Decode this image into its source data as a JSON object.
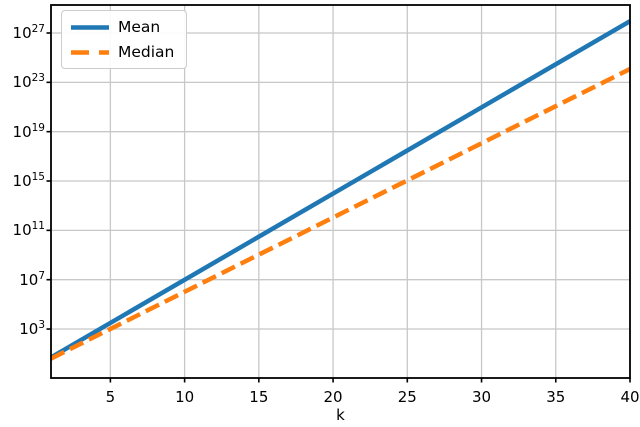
{
  "figure": {
    "background": "#ffffff",
    "axis_color": "#000000",
    "grid_color": "#c8c8c8",
    "y_base": "10"
  },
  "chart_data": {
    "type": "line",
    "title": "",
    "xlabel": "k",
    "ylabel": "",
    "x_scale": "linear",
    "y_scale": "log10",
    "xlim": [
      1,
      40
    ],
    "ylim_log10": [
      -0.97,
      29.27
    ],
    "x_ticks": [
      5,
      10,
      15,
      20,
      25,
      30,
      35,
      40
    ],
    "y_tick_exponents": [
      3,
      7,
      11,
      15,
      19,
      23,
      27
    ],
    "grid": true,
    "legend_position": "upper left",
    "series": [
      {
        "name": "Mean",
        "color": "#1f77b4",
        "line_style": "solid",
        "line_width": 4.5,
        "x": [
          1,
          40
        ],
        "log10_y": [
          0.7,
          27.96
        ]
      },
      {
        "name": "Median",
        "color": "#ff7f0e",
        "line_style": "dashed",
        "line_width": 4.5,
        "dash_pattern": [
          14.8,
          6.4
        ],
        "x": [
          1,
          40
        ],
        "log10_y": [
          0.6,
          24.08
        ]
      }
    ]
  }
}
